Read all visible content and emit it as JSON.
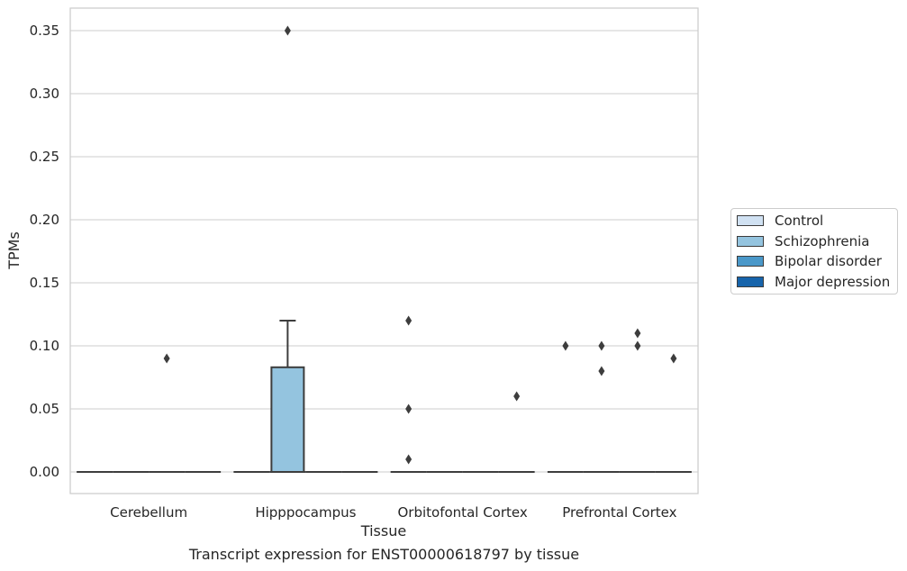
{
  "chart_data": {
    "type": "box",
    "caption": "Transcript expression for ENST00000618797 by tissue",
    "xlabel": "Tissue",
    "ylabel": "TPMs",
    "ylim": [
      -0.017,
      0.367
    ],
    "yticks": [
      "0.00",
      "0.05",
      "0.10",
      "0.15",
      "0.20",
      "0.25",
      "0.30",
      "0.35"
    ],
    "ytick_values": [
      0,
      0.05,
      0.1,
      0.15,
      0.2,
      0.25,
      0.3,
      0.35
    ],
    "categories": [
      "Cerebellum",
      "Hipppocampus",
      "Orbitofontal Cortex",
      "Prefrontal Cortex"
    ],
    "grid": "horizontal",
    "legend_position": "right",
    "series": [
      {
        "name": "Control",
        "color": "#d0e1f2",
        "boxes": [
          {
            "category": "Cerebellum",
            "q1": 0,
            "median": 0,
            "q3": 0,
            "whisker_low": 0,
            "whisker_high": 0,
            "outliers": []
          },
          {
            "category": "Hipppocampus",
            "q1": 0,
            "median": 0,
            "q3": 0,
            "whisker_low": 0,
            "whisker_high": 0,
            "outliers": []
          },
          {
            "category": "Orbitofontal Cortex",
            "q1": 0,
            "median": 0,
            "q3": 0,
            "whisker_low": 0,
            "whisker_high": 0,
            "outliers": [
              0.12,
              0.05,
              0.01
            ]
          },
          {
            "category": "Prefrontal Cortex",
            "q1": 0,
            "median": 0,
            "q3": 0,
            "whisker_low": 0,
            "whisker_high": 0,
            "outliers": [
              0.1
            ]
          }
        ]
      },
      {
        "name": "Schizophrenia",
        "color": "#94c4df",
        "boxes": [
          {
            "category": "Cerebellum",
            "q1": 0,
            "median": 0,
            "q3": 0,
            "whisker_low": 0,
            "whisker_high": 0,
            "outliers": []
          },
          {
            "category": "Hipppocampus",
            "q1": 0,
            "median": 0,
            "q3": 0.083,
            "whisker_low": 0,
            "whisker_high": 0.12,
            "outliers": [
              0.35
            ]
          },
          {
            "category": "Orbitofontal Cortex",
            "q1": 0,
            "median": 0,
            "q3": 0,
            "whisker_low": 0,
            "whisker_high": 0,
            "outliers": []
          },
          {
            "category": "Prefrontal Cortex",
            "q1": 0,
            "median": 0,
            "q3": 0,
            "whisker_low": 0,
            "whisker_high": 0,
            "outliers": [
              0.1,
              0.08
            ]
          }
        ]
      },
      {
        "name": "Bipolar disorder",
        "color": "#4a98c9",
        "boxes": [
          {
            "category": "Cerebellum",
            "q1": 0,
            "median": 0,
            "q3": 0,
            "whisker_low": 0,
            "whisker_high": 0,
            "outliers": [
              0.09
            ]
          },
          {
            "category": "Hipppocampus",
            "q1": 0,
            "median": 0,
            "q3": 0,
            "whisker_low": 0,
            "whisker_high": 0,
            "outliers": []
          },
          {
            "category": "Orbitofontal Cortex",
            "q1": 0,
            "median": 0,
            "q3": 0,
            "whisker_low": 0,
            "whisker_high": 0,
            "outliers": []
          },
          {
            "category": "Prefrontal Cortex",
            "q1": 0,
            "median": 0,
            "q3": 0,
            "whisker_low": 0,
            "whisker_high": 0,
            "outliers": [
              0.11,
              0.1
            ]
          }
        ]
      },
      {
        "name": "Major depression",
        "color": "#1764ab",
        "boxes": [
          {
            "category": "Cerebellum",
            "q1": 0,
            "median": 0,
            "q3": 0,
            "whisker_low": 0,
            "whisker_high": 0,
            "outliers": []
          },
          {
            "category": "Hipppocampus",
            "q1": 0,
            "median": 0,
            "q3": 0,
            "whisker_low": 0,
            "whisker_high": 0,
            "outliers": []
          },
          {
            "category": "Orbitofontal Cortex",
            "q1": 0,
            "median": 0,
            "q3": 0,
            "whisker_low": 0,
            "whisker_high": 0,
            "outliers": [
              0.06
            ]
          },
          {
            "category": "Prefrontal Cortex",
            "q1": 0,
            "median": 0,
            "q3": 0,
            "whisker_low": 0,
            "whisker_high": 0,
            "outliers": [
              0.09
            ]
          }
        ]
      }
    ]
  }
}
